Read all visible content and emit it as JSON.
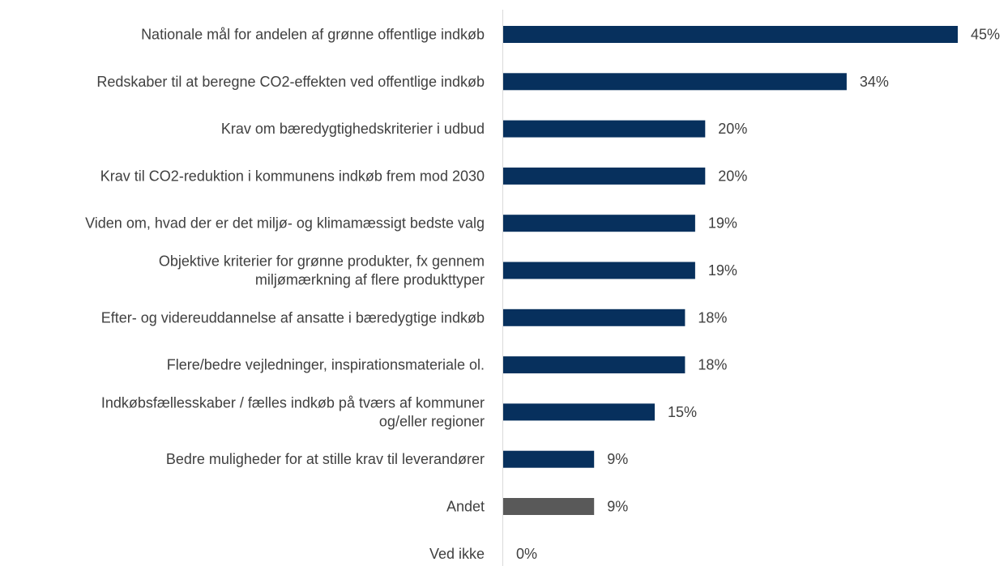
{
  "chart_data": {
    "type": "bar",
    "orientation": "horizontal",
    "categories": [
      "Nationale mål for andelen af grønne offentlige indkøb",
      "Redskaber til at beregne CO2-effekten ved offentlige indkøb",
      "Krav om bæredygtighedskriterier i udbud",
      "Krav til CO2-reduktion i kommunens indkøb frem mod 2030",
      "Viden om, hvad der er det miljø- og klimamæssigt bedste valg",
      "Objektive kriterier for grønne produkter, fx gennem miljømærkning af flere produkttyper",
      "Efter- og videreuddannelse af ansatte i bæredygtige indkøb",
      "Flere/bedre vejledninger, inspirationsmateriale ol.",
      "Indkøbsfællesskaber / fælles indkøb på tværs af kommuner og/eller regioner",
      "Bedre muligheder for at stille krav til leverandører",
      "Andet",
      "Ved ikke"
    ],
    "label_lines": [
      [
        "Nationale mål for andelen af grønne offentlige indkøb"
      ],
      [
        "Redskaber til at beregne CO2-effekten ved offentlige indkøb"
      ],
      [
        "Krav om bæredygtighedskriterier i udbud"
      ],
      [
        "Krav til CO2-reduktion i kommunens indkøb frem mod 2030"
      ],
      [
        "Viden om, hvad der er det miljø- og klimamæssigt bedste valg"
      ],
      [
        "Objektive kriterier for grønne produkter, fx gennem",
        "miljømærkning af flere produkttyper"
      ],
      [
        "Efter- og videreuddannelse af ansatte i bæredygtige indkøb"
      ],
      [
        "Flere/bedre vejledninger, inspirationsmateriale ol."
      ],
      [
        "Indkøbsfællesskaber / fælles indkøb på tværs af kommuner",
        "og/eller regioner"
      ],
      [
        "Bedre muligheder for at stille krav til leverandører"
      ],
      [
        "Andet"
      ],
      [
        "Ved ikke"
      ]
    ],
    "values": [
      45,
      34,
      20,
      20,
      19,
      19,
      18,
      18,
      15,
      9,
      9,
      0
    ],
    "value_labels": [
      "45%",
      "34%",
      "20%",
      "20%",
      "19%",
      "19%",
      "18%",
      "18%",
      "15%",
      "9%",
      "9%",
      "0%"
    ],
    "bar_colors": [
      "#07305d",
      "#07305d",
      "#07305d",
      "#07305d",
      "#07305d",
      "#07305d",
      "#07305d",
      "#07305d",
      "#07305d",
      "#07305d",
      "#595959",
      "#595959"
    ],
    "xlim": [
      0,
      45
    ],
    "title": "",
    "xlabel": "",
    "ylabel": "",
    "grid": false,
    "legend": "none"
  },
  "colors": {
    "primary_bar": "#07305d",
    "other_bar": "#595959",
    "axis_line": "#d9d9d9",
    "text": "#404040"
  }
}
